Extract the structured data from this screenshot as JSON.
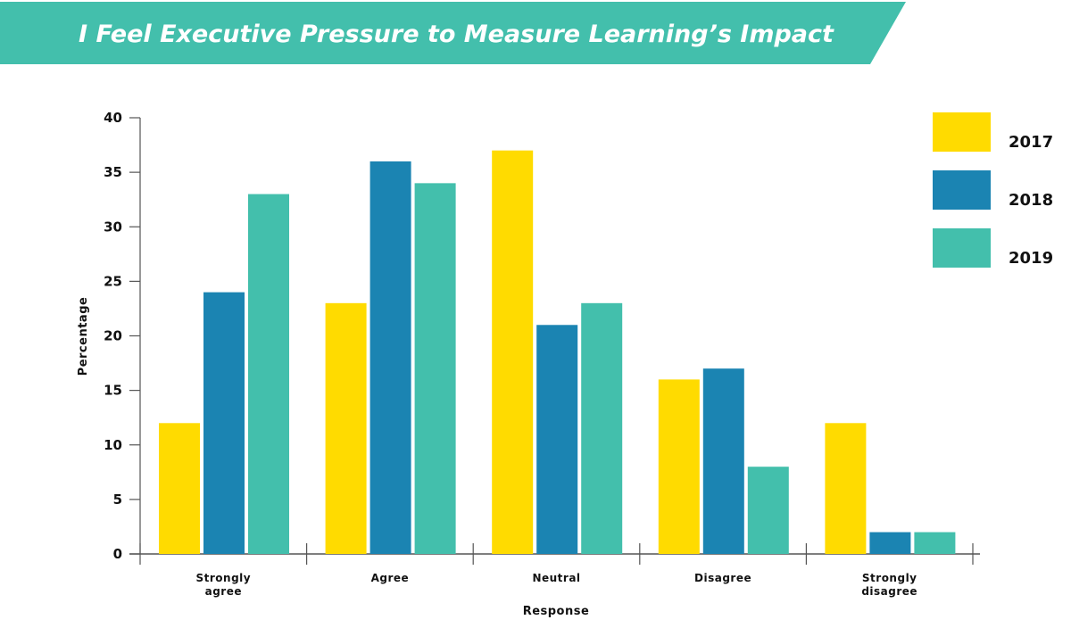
{
  "chart_data": {
    "type": "bar",
    "title": "I Feel Executive Pressure to Measure Learning’s Impact",
    "xlabel": "Response",
    "ylabel": "Percentage",
    "ylim": [
      0,
      40
    ],
    "yticks": [
      0,
      5,
      10,
      15,
      20,
      25,
      30,
      35,
      40
    ],
    "categories": [
      [
        "Strongly",
        "agree"
      ],
      [
        "Agree"
      ],
      [
        "Neutral"
      ],
      [
        "Disagree"
      ],
      [
        "Strongly",
        "disagree"
      ]
    ],
    "series": [
      {
        "name": "2017",
        "color": "#FFDB00",
        "values": [
          12,
          23,
          37,
          16,
          12
        ]
      },
      {
        "name": "2018",
        "color": "#1B84B2",
        "values": [
          24,
          36,
          21,
          17,
          2
        ]
      },
      {
        "name": "2019",
        "color": "#43BFAC",
        "values": [
          33,
          34,
          23,
          8,
          2
        ]
      }
    ],
    "legend_position": "right",
    "grid": false,
    "banner_color": "#43BFAC"
  }
}
